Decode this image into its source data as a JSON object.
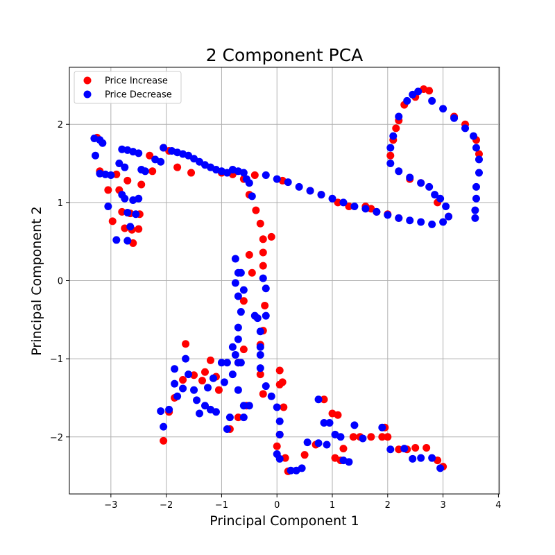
{
  "chart_data": {
    "type": "scatter",
    "title": "2 Component PCA",
    "xlabel": "Principal Component 1",
    "ylabel": "Principal Component 2",
    "xlim": [
      -3.75,
      4.02
    ],
    "ylim": [
      -2.73,
      2.73
    ],
    "xticks": [
      -3,
      -2,
      -1,
      0,
      1,
      2,
      3,
      4
    ],
    "yticks": [
      -2,
      -1,
      0,
      1,
      2
    ],
    "grid": true,
    "legend_position": "top-left",
    "series": [
      {
        "name": "Price Increase",
        "color": "#ff0000",
        "points": [
          [
            -3.25,
            1.83
          ],
          [
            -3.2,
            1.4
          ],
          [
            -3.05,
            1.16
          ],
          [
            -2.97,
            0.76
          ],
          [
            -2.9,
            1.36
          ],
          [
            -2.85,
            1.16
          ],
          [
            -2.8,
            0.88
          ],
          [
            -2.75,
            0.67
          ],
          [
            -2.7,
            1.28
          ],
          [
            -2.65,
            0.86
          ],
          [
            -2.62,
            0.65
          ],
          [
            -2.6,
            0.48
          ],
          [
            -2.5,
            0.66
          ],
          [
            -2.48,
            0.85
          ],
          [
            -2.45,
            1.23
          ],
          [
            -2.3,
            1.6
          ],
          [
            -2.25,
            1.4
          ],
          [
            -2.05,
            1.7
          ],
          [
            -1.95,
            1.66
          ],
          [
            -1.8,
            1.45
          ],
          [
            -1.55,
            1.38
          ],
          [
            -1.0,
            1.38
          ],
          [
            -0.8,
            1.36
          ],
          [
            -0.6,
            1.3
          ],
          [
            -0.5,
            1.1
          ],
          [
            -0.4,
            1.35
          ],
          [
            -0.38,
            0.9
          ],
          [
            -0.3,
            0.73
          ],
          [
            -0.25,
            0.53
          ],
          [
            -0.25,
            0.36
          ],
          [
            -0.25,
            0.19
          ],
          [
            -0.22,
            -0.32
          ],
          [
            -0.25,
            -0.64
          ],
          [
            -0.3,
            -0.82
          ],
          [
            -0.1,
            0.56
          ],
          [
            -0.3,
            -1.2
          ],
          [
            -0.25,
            -1.45
          ],
          [
            0.05,
            -1.33
          ],
          [
            0.05,
            -1.15
          ],
          [
            0.1,
            -1.3
          ],
          [
            0.12,
            -1.62
          ],
          [
            0.05,
            -1.97
          ],
          [
            0.0,
            -2.12
          ],
          [
            0.15,
            -2.27
          ],
          [
            0.2,
            -2.44
          ],
          [
            0.5,
            -2.23
          ],
          [
            0.7,
            -2.1
          ],
          [
            0.85,
            -1.52
          ],
          [
            1.0,
            -1.7
          ],
          [
            1.05,
            -2.27
          ],
          [
            1.1,
            -1.72
          ],
          [
            1.15,
            -2.3
          ],
          [
            1.2,
            -2.15
          ],
          [
            1.38,
            -2.0
          ],
          [
            1.5,
            -2.0
          ],
          [
            1.7,
            -2.0
          ],
          [
            1.9,
            -2.0
          ],
          [
            1.95,
            -1.88
          ],
          [
            2.0,
            -2.0
          ],
          [
            2.2,
            -2.16
          ],
          [
            2.35,
            -2.16
          ],
          [
            2.5,
            -2.14
          ],
          [
            2.7,
            -2.14
          ],
          [
            2.9,
            -2.3
          ],
          [
            3.0,
            -2.38
          ],
          [
            -2.05,
            -2.05
          ],
          [
            -1.95,
            -1.68
          ],
          [
            -1.85,
            -1.5
          ],
          [
            -1.7,
            -1.27
          ],
          [
            -1.65,
            -0.81
          ],
          [
            -1.5,
            -1.21
          ],
          [
            -1.35,
            -1.28
          ],
          [
            -1.3,
            -1.17
          ],
          [
            -1.2,
            -1.02
          ],
          [
            -1.1,
            -1.23
          ],
          [
            -1.05,
            -1.4
          ],
          [
            -0.85,
            -1.9
          ],
          [
            -0.7,
            -1.05
          ],
          [
            -0.7,
            -1.75
          ],
          [
            -0.6,
            -0.88
          ],
          [
            -0.55,
            -1.6
          ],
          [
            -0.5,
            0.33
          ],
          [
            -0.45,
            0.1
          ],
          [
            -0.6,
            -0.26
          ],
          [
            1.6,
            0.95
          ],
          [
            1.7,
            0.92
          ],
          [
            1.8,
            0.88
          ],
          [
            2.0,
            0.85
          ],
          [
            2.05,
            1.6
          ],
          [
            2.1,
            1.8
          ],
          [
            2.15,
            1.95
          ],
          [
            2.2,
            2.05
          ],
          [
            2.3,
            2.25
          ],
          [
            2.5,
            2.35
          ],
          [
            2.65,
            2.45
          ],
          [
            2.75,
            2.43
          ],
          [
            3.2,
            2.1
          ],
          [
            3.4,
            2.0
          ],
          [
            3.6,
            1.8
          ],
          [
            3.65,
            1.62
          ],
          [
            3.1,
            0.82
          ],
          [
            2.9,
            1.0
          ],
          [
            2.6,
            1.25
          ],
          [
            2.4,
            1.3
          ],
          [
            2.2,
            0.8
          ],
          [
            0.6,
            1.15
          ],
          [
            0.8,
            1.1
          ],
          [
            1.1,
            1.0
          ],
          [
            1.3,
            0.95
          ],
          [
            0.1,
            1.28
          ]
        ]
      },
      {
        "name": "Price Decrease",
        "color": "#0000ff",
        "points": [
          [
            -3.3,
            1.82
          ],
          [
            -3.28,
            1.6
          ],
          [
            -3.2,
            1.8
          ],
          [
            -3.15,
            1.76
          ],
          [
            -3.2,
            1.37
          ],
          [
            -3.1,
            1.36
          ],
          [
            -3.05,
            0.95
          ],
          [
            -3.0,
            1.35
          ],
          [
            -2.9,
            0.52
          ],
          [
            -2.85,
            1.5
          ],
          [
            -2.8,
            1.1
          ],
          [
            -2.75,
            1.45
          ],
          [
            -2.75,
            1.05
          ],
          [
            -2.7,
            0.87
          ],
          [
            -2.7,
            0.51
          ],
          [
            -2.65,
            0.69
          ],
          [
            -2.6,
            1.03
          ],
          [
            -2.55,
            0.85
          ],
          [
            -2.5,
            1.05
          ],
          [
            -2.45,
            1.42
          ],
          [
            -2.38,
            1.4
          ],
          [
            -2.8,
            1.68
          ],
          [
            -2.7,
            1.67
          ],
          [
            -2.6,
            1.65
          ],
          [
            -2.5,
            1.63
          ],
          [
            -2.2,
            1.55
          ],
          [
            -2.1,
            1.52
          ],
          [
            -2.05,
            1.7
          ],
          [
            -1.9,
            1.66
          ],
          [
            -1.8,
            1.64
          ],
          [
            -1.7,
            1.62
          ],
          [
            -1.6,
            1.6
          ],
          [
            -1.5,
            1.56
          ],
          [
            -1.4,
            1.52
          ],
          [
            -1.3,
            1.48
          ],
          [
            -1.2,
            1.45
          ],
          [
            -1.1,
            1.42
          ],
          [
            -1.0,
            1.4
          ],
          [
            -0.9,
            1.38
          ],
          [
            -0.8,
            1.42
          ],
          [
            -0.7,
            1.4
          ],
          [
            -0.6,
            1.38
          ],
          [
            -0.55,
            1.3
          ],
          [
            -0.5,
            1.25
          ],
          [
            -0.45,
            1.08
          ],
          [
            -0.2,
            1.35
          ],
          [
            0.0,
            1.3
          ],
          [
            0.2,
            1.26
          ],
          [
            0.4,
            1.2
          ],
          [
            0.6,
            1.15
          ],
          [
            0.8,
            1.1
          ],
          [
            1.0,
            1.05
          ],
          [
            1.2,
            1.0
          ],
          [
            1.4,
            0.95
          ],
          [
            1.6,
            0.92
          ],
          [
            1.8,
            0.88
          ],
          [
            2.0,
            0.84
          ],
          [
            2.2,
            0.8
          ],
          [
            2.4,
            0.77
          ],
          [
            2.6,
            0.75
          ],
          [
            2.8,
            0.72
          ],
          [
            3.0,
            0.75
          ],
          [
            3.1,
            0.82
          ],
          [
            3.05,
            0.95
          ],
          [
            2.95,
            1.05
          ],
          [
            2.85,
            1.1
          ],
          [
            2.75,
            1.2
          ],
          [
            2.6,
            1.25
          ],
          [
            2.4,
            1.32
          ],
          [
            2.2,
            1.4
          ],
          [
            2.05,
            1.5
          ],
          [
            2.05,
            1.7
          ],
          [
            2.1,
            1.85
          ],
          [
            2.2,
            2.1
          ],
          [
            2.35,
            2.3
          ],
          [
            2.45,
            2.38
          ],
          [
            2.55,
            2.42
          ],
          [
            2.8,
            2.3
          ],
          [
            3.0,
            2.2
          ],
          [
            3.2,
            2.08
          ],
          [
            3.4,
            1.95
          ],
          [
            3.55,
            1.85
          ],
          [
            3.6,
            1.7
          ],
          [
            3.65,
            1.55
          ],
          [
            3.65,
            1.38
          ],
          [
            3.6,
            1.2
          ],
          [
            3.6,
            1.05
          ],
          [
            3.58,
            0.9
          ],
          [
            3.58,
            0.8
          ],
          [
            -0.7,
            -1.05
          ],
          [
            -0.75,
            0.28
          ],
          [
            -0.7,
            0.1
          ],
          [
            -0.75,
            -0.03
          ],
          [
            -0.65,
            0.1
          ],
          [
            -0.6,
            -0.12
          ],
          [
            -0.7,
            -0.2
          ],
          [
            -0.65,
            -0.4
          ],
          [
            -0.7,
            -0.6
          ],
          [
            -0.7,
            -0.75
          ],
          [
            -0.75,
            -0.95
          ],
          [
            -0.8,
            -0.85
          ],
          [
            -0.65,
            -1.05
          ],
          [
            -0.7,
            -1.4
          ],
          [
            -0.6,
            -1.6
          ],
          [
            -0.5,
            -1.6
          ],
          [
            -0.4,
            -0.45
          ],
          [
            -0.35,
            -0.48
          ],
          [
            -0.3,
            -0.65
          ],
          [
            -0.3,
            -0.85
          ],
          [
            -0.3,
            -0.95
          ],
          [
            -0.3,
            -1.12
          ],
          [
            -0.25,
            0.03
          ],
          [
            -0.2,
            -0.1
          ],
          [
            -0.2,
            -0.45
          ],
          [
            -0.2,
            -1.35
          ],
          [
            -0.1,
            -1.48
          ],
          [
            0.0,
            -1.62
          ],
          [
            0.05,
            -1.8
          ],
          [
            0.05,
            -1.97
          ],
          [
            0.0,
            -2.22
          ],
          [
            0.05,
            -2.28
          ],
          [
            0.25,
            -2.43
          ],
          [
            0.35,
            -2.43
          ],
          [
            0.45,
            -2.4
          ],
          [
            0.55,
            -2.07
          ],
          [
            0.75,
            -2.08
          ],
          [
            0.9,
            -2.1
          ],
          [
            0.75,
            -1.52
          ],
          [
            0.85,
            -1.82
          ],
          [
            0.95,
            -1.82
          ],
          [
            1.05,
            -1.97
          ],
          [
            1.15,
            -2.0
          ],
          [
            1.2,
            -2.3
          ],
          [
            1.3,
            -2.32
          ],
          [
            1.4,
            -1.85
          ],
          [
            1.55,
            -2.02
          ],
          [
            1.9,
            -1.88
          ],
          [
            2.05,
            -2.16
          ],
          [
            2.3,
            -2.15
          ],
          [
            2.45,
            -2.28
          ],
          [
            2.6,
            -2.27
          ],
          [
            2.8,
            -2.27
          ],
          [
            2.95,
            -2.4
          ],
          [
            -2.1,
            -1.67
          ],
          [
            -2.05,
            -1.87
          ],
          [
            -1.95,
            -1.65
          ],
          [
            -1.85,
            -1.32
          ],
          [
            -1.85,
            -1.13
          ],
          [
            -1.8,
            -1.48
          ],
          [
            -1.7,
            -1.38
          ],
          [
            -1.65,
            -1.0
          ],
          [
            -1.6,
            -1.2
          ],
          [
            -1.5,
            -1.4
          ],
          [
            -1.45,
            -1.53
          ],
          [
            -1.4,
            -1.7
          ],
          [
            -1.3,
            -1.6
          ],
          [
            -1.25,
            -1.37
          ],
          [
            -1.2,
            -1.65
          ],
          [
            -1.15,
            -1.25
          ],
          [
            -1.1,
            -1.68
          ],
          [
            -1.0,
            -1.05
          ],
          [
            -0.95,
            -1.3
          ],
          [
            -0.9,
            -1.05
          ],
          [
            -0.9,
            -1.9
          ],
          [
            -0.85,
            -1.75
          ],
          [
            -0.8,
            -1.2
          ],
          [
            -0.6,
            -1.75
          ]
        ]
      }
    ]
  }
}
